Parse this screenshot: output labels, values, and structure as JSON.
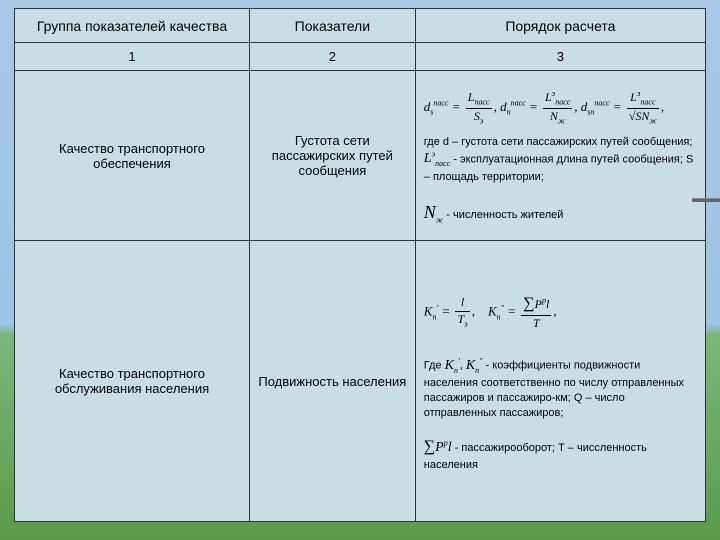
{
  "colors": {
    "table_bg": "#c9dde4",
    "border": "#333333",
    "sky_top": "#a8c8e8",
    "sky_bottom": "#9cc4e4",
    "grass_top": "#7ab87a",
    "grass_bottom": "#5a9a4a"
  },
  "header": {
    "c1": "Группа показателей качества",
    "c2": "Показатели",
    "c3": "Порядок расчета"
  },
  "numrow": {
    "c1": "1",
    "c2": "2",
    "c3": "3"
  },
  "row3": {
    "c1": "Качество транспортного обеспечения",
    "c2": "Густота сети пассажирских путей сообщения",
    "formula": {
      "d1_lhs": "d",
      "d1_sub": "s",
      "d1_sup": "пасс",
      "f1_num": "L",
      "f1_num_sub": "пасс",
      "f1_den": "S",
      "f1_den_sub": "э",
      "d2_lhs": "d",
      "d2_sub": "n",
      "d2_sup": "пасс",
      "f2_num": "L",
      "f2_num_sup": "э",
      "f2_num_sub": "пасс",
      "f2_den": "N",
      "f2_den_sub": "ж",
      "d3_lhs": "d",
      "d3_sub": "sn",
      "d3_sup": "пасс",
      "f3_num": "L",
      "f3_num_sup": "э",
      "f3_num_sub": "пасс",
      "f3_den": "√SN",
      "f3_den_sub": "ж"
    },
    "desc_a": "где d – густота сети пассажирских путей сообщения; ",
    "desc_L": "L",
    "desc_L_sup": "э",
    "desc_L_sub": "пасс",
    "desc_b": " - эксплуатационная длина путей сообщения; S – площадь территории;",
    "desc_N": "N",
    "desc_N_sub": "ж",
    "desc_c": " - численность жителей"
  },
  "row4": {
    "c1": "Качество транспортного обслуживания населения",
    "c2": "Подвижность населения",
    "formula": {
      "K1": "K",
      "K1_sub": "n",
      "K1_sup": "′",
      "f1_num": "l",
      "f1_den": "T",
      "f1_den_sub": "э",
      "K2": "K",
      "K2_sub": "n",
      "K2_sup": "″",
      "f2_num_pre": "∑",
      "f2_num": "P",
      "f2_num_sup": "p",
      "f2_num_post": "l",
      "f2_den": "T"
    },
    "desc_a": "Где ",
    "Ka": "K",
    "Ka_sub": "n",
    "Ka_sup": "′",
    "comma": ", ",
    "Kb": "K",
    "Kb_sub": "n",
    "Kb_sup": "″",
    "desc_b": "   - коэффициенты подвижности населения соответственно по числу отправленных пассажиров и пассажиро-км; Q – число отправленных пассажиров;",
    "sum": "∑",
    "sum_P": "P",
    "sum_P_sup": "p",
    "sum_l": "l",
    "desc_c": " - пассажирооборот; Т – чиссленность населения"
  }
}
